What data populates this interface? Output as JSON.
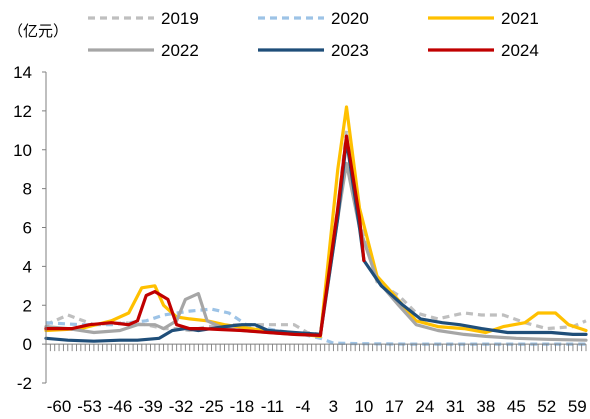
{
  "chart_data": {
    "type": "line",
    "unit_label": "（亿元）",
    "title": "",
    "xlabel": "",
    "ylabel": "",
    "ylim": [
      -2,
      14
    ],
    "y_ticks": [
      -2,
      0,
      2,
      4,
      6,
      8,
      10,
      12,
      14
    ],
    "xlim": [
      -63,
      61
    ],
    "x_ticks": [
      -60,
      -53,
      -46,
      -39,
      -32,
      -25,
      -18,
      -11,
      -4,
      3,
      10,
      17,
      24,
      31,
      38,
      45,
      52,
      59
    ],
    "grid": false,
    "legend_position": "top",
    "series": [
      {
        "name": "2019",
        "color": "#BFBFBF",
        "dash": "7 5",
        "width": 3.2,
        "points": [
          [
            -63,
            1.0
          ],
          [
            -58,
            1.5
          ],
          [
            -52,
            1.0
          ],
          [
            -45,
            1.1
          ],
          [
            -40,
            1.0
          ],
          [
            -36,
            0.8
          ],
          [
            -33,
            0.8
          ],
          [
            -30,
            0.7
          ],
          [
            -26,
            0.9
          ],
          [
            -20,
            1.0
          ],
          [
            -14,
            1.0
          ],
          [
            -6,
            1.0
          ],
          [
            -3,
            0.6
          ],
          [
            0,
            0.5
          ],
          [
            4,
            7.0
          ],
          [
            6,
            11.0
          ],
          [
            9,
            6.5
          ],
          [
            13,
            3.2
          ],
          [
            18,
            2.5
          ],
          [
            22,
            1.6
          ],
          [
            27,
            1.3
          ],
          [
            33,
            1.6
          ],
          [
            37,
            1.5
          ],
          [
            42,
            1.5
          ],
          [
            47,
            1.1
          ],
          [
            52,
            0.8
          ],
          [
            58,
            0.9
          ],
          [
            61,
            1.2
          ]
        ]
      },
      {
        "name": "2020",
        "color": "#9DC3E6",
        "dash": "7 5",
        "width": 3.2,
        "points": [
          [
            -63,
            1.1
          ],
          [
            -55,
            1.0
          ],
          [
            -48,
            1.0
          ],
          [
            -40,
            1.2
          ],
          [
            -36,
            1.5
          ],
          [
            -30,
            1.7
          ],
          [
            -25,
            1.8
          ],
          [
            -21,
            1.6
          ],
          [
            -17,
            1.0
          ],
          [
            -10,
            0.7
          ],
          [
            -4,
            0.5
          ],
          [
            0,
            0.3
          ],
          [
            3,
            0.05
          ],
          [
            10,
            0.02
          ],
          [
            20,
            0.0
          ],
          [
            30,
            0.0
          ],
          [
            40,
            0.0
          ],
          [
            50,
            0.0
          ],
          [
            61,
            0.0
          ]
        ]
      },
      {
        "name": "2021",
        "color": "#FFC000",
        "dash": "",
        "width": 3.2,
        "points": [
          [
            -63,
            0.7
          ],
          [
            -55,
            0.8
          ],
          [
            -48,
            1.2
          ],
          [
            -44,
            1.6
          ],
          [
            -41,
            2.9
          ],
          [
            -38,
            3.0
          ],
          [
            -36,
            2.0
          ],
          [
            -33,
            1.4
          ],
          [
            -30,
            1.3
          ],
          [
            -26,
            1.2
          ],
          [
            -22,
            1.0
          ],
          [
            -16,
            0.8
          ],
          [
            -10,
            0.6
          ],
          [
            -4,
            0.5
          ],
          [
            0,
            0.4
          ],
          [
            4,
            9.0
          ],
          [
            6,
            12.2
          ],
          [
            9,
            7.0
          ],
          [
            13,
            3.5
          ],
          [
            17,
            2.5
          ],
          [
            22,
            1.2
          ],
          [
            27,
            0.9
          ],
          [
            33,
            0.8
          ],
          [
            38,
            0.6
          ],
          [
            42,
            0.9
          ],
          [
            47,
            1.1
          ],
          [
            50,
            1.6
          ],
          [
            54,
            1.6
          ],
          [
            57,
            1.0
          ],
          [
            61,
            0.7
          ]
        ]
      },
      {
        "name": "2022",
        "color": "#A6A6A6",
        "dash": "",
        "width": 3.2,
        "points": [
          [
            -63,
            0.9
          ],
          [
            -58,
            0.8
          ],
          [
            -52,
            0.6
          ],
          [
            -46,
            0.7
          ],
          [
            -42,
            1.0
          ],
          [
            -38,
            1.0
          ],
          [
            -36,
            0.8
          ],
          [
            -33,
            1.2
          ],
          [
            -31,
            2.3
          ],
          [
            -28,
            2.6
          ],
          [
            -26,
            1.2
          ],
          [
            -22,
            0.8
          ],
          [
            -18,
            0.7
          ],
          [
            -12,
            0.6
          ],
          [
            -6,
            0.5
          ],
          [
            0,
            0.45
          ],
          [
            4,
            6.5
          ],
          [
            6,
            9.3
          ],
          [
            9,
            6.0
          ],
          [
            13,
            3.3
          ],
          [
            18,
            2.0
          ],
          [
            22,
            1.0
          ],
          [
            27,
            0.7
          ],
          [
            33,
            0.5
          ],
          [
            38,
            0.4
          ],
          [
            45,
            0.3
          ],
          [
            52,
            0.25
          ],
          [
            61,
            0.2
          ]
        ]
      },
      {
        "name": "2023",
        "color": "#1F4E79",
        "dash": "",
        "width": 3.2,
        "points": [
          [
            -63,
            0.3
          ],
          [
            -58,
            0.2
          ],
          [
            -52,
            0.15
          ],
          [
            -46,
            0.2
          ],
          [
            -42,
            0.2
          ],
          [
            -37,
            0.3
          ],
          [
            -34,
            0.7
          ],
          [
            -31,
            0.8
          ],
          [
            -28,
            0.7
          ],
          [
            -25,
            0.8
          ],
          [
            -22,
            0.9
          ],
          [
            -18,
            1.0
          ],
          [
            -15,
            1.0
          ],
          [
            -12,
            0.7
          ],
          [
            -6,
            0.6
          ],
          [
            0,
            0.5
          ],
          [
            4,
            6.5
          ],
          [
            6,
            10.5
          ],
          [
            9,
            6.0
          ],
          [
            10,
            4.3
          ],
          [
            14,
            3.0
          ],
          [
            19,
            2.0
          ],
          [
            23,
            1.3
          ],
          [
            28,
            1.1
          ],
          [
            32,
            1.0
          ],
          [
            37,
            0.8
          ],
          [
            43,
            0.6
          ],
          [
            48,
            0.6
          ],
          [
            53,
            0.6
          ],
          [
            58,
            0.5
          ],
          [
            61,
            0.5
          ]
        ]
      },
      {
        "name": "2024",
        "color": "#C00000",
        "dash": "",
        "width": 3.2,
        "points": [
          [
            -63,
            0.8
          ],
          [
            -57,
            0.8
          ],
          [
            -53,
            1.0
          ],
          [
            -48,
            1.1
          ],
          [
            -44,
            1.0
          ],
          [
            -42,
            1.2
          ],
          [
            -40,
            2.5
          ],
          [
            -38,
            2.7
          ],
          [
            -35,
            2.3
          ],
          [
            -33,
            1.0
          ],
          [
            -30,
            0.8
          ],
          [
            -27,
            0.8
          ],
          [
            -23,
            0.75
          ],
          [
            -18,
            0.7
          ],
          [
            -12,
            0.6
          ],
          [
            -6,
            0.5
          ],
          [
            0,
            0.45
          ],
          [
            4,
            7.0
          ],
          [
            6,
            10.7
          ],
          [
            9,
            6.5
          ],
          [
            10,
            4.3
          ]
        ]
      }
    ]
  }
}
